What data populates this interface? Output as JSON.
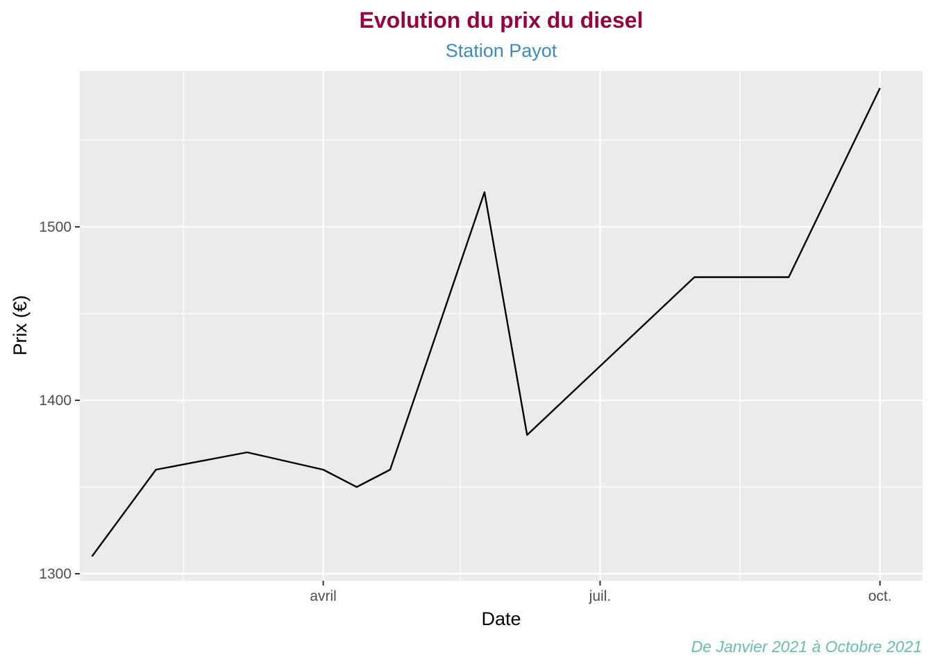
{
  "chart_data": {
    "type": "line",
    "title": "Evolution du prix du diesel",
    "subtitle": "Station Payot",
    "caption": "De Janvier 2021 à Octobre 2021",
    "xlabel": "Date",
    "ylabel": "Prix (€)",
    "x_tick_labels": [
      {
        "date": "2021-04-01",
        "label": "avril"
      },
      {
        "date": "2021-07-01",
        "label": "juil."
      },
      {
        "date": "2021-10-01",
        "label": "oct."
      }
    ],
    "y_ticks": [
      1300,
      1400,
      1500
    ],
    "grid": true,
    "xlim": [
      "2021-01-11",
      "2021-10-15"
    ],
    "ylim": [
      1296,
      1590
    ],
    "series": [
      {
        "points": [
          {
            "x": "2021-01-15",
            "y": 1310
          },
          {
            "x": "2021-02-05",
            "y": 1360
          },
          {
            "x": "2021-03-07",
            "y": 1370
          },
          {
            "x": "2021-04-01",
            "y": 1360
          },
          {
            "x": "2021-04-12",
            "y": 1350
          },
          {
            "x": "2021-04-23",
            "y": 1360
          },
          {
            "x": "2021-05-24",
            "y": 1520
          },
          {
            "x": "2021-06-07",
            "y": 1380
          },
          {
            "x": "2021-08-01",
            "y": 1471
          },
          {
            "x": "2021-09-01",
            "y": 1471
          },
          {
            "x": "2021-10-01",
            "y": 1580
          }
        ]
      }
    ],
    "colors": {
      "title": "#990042",
      "subtitle": "#3b8bc2",
      "caption": "#66c2a5",
      "panel": "#ebebeb",
      "grid": "#ffffff",
      "line": "#000000"
    }
  }
}
